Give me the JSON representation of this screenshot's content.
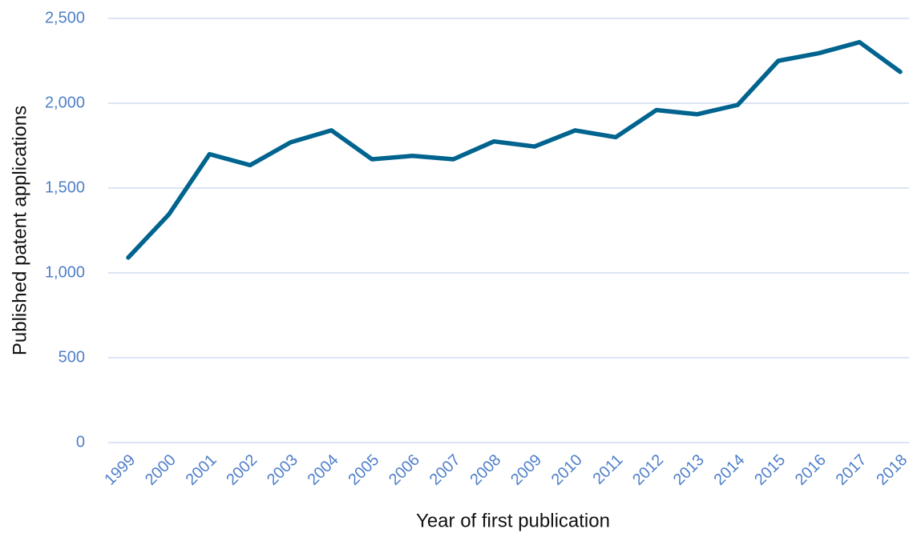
{
  "chart_data": {
    "type": "line",
    "x_label": "Year of first publication",
    "y_label": "Published patent applications",
    "categories": [
      "1999",
      "2000",
      "2001",
      "2002",
      "2003",
      "2004",
      "2005",
      "2006",
      "2007",
      "2008",
      "2009",
      "2010",
      "2011",
      "2012",
      "2013",
      "2014",
      "2015",
      "2016",
      "2017",
      "2018"
    ],
    "series": [
      {
        "name": "Published patent applications",
        "color": "#00648f",
        "values": [
          1090,
          1345,
          1700,
          1635,
          1770,
          1840,
          1670,
          1690,
          1670,
          1775,
          1745,
          1840,
          1800,
          1960,
          1935,
          1990,
          2250,
          2295,
          2360,
          2185
        ]
      }
    ],
    "ylim": [
      0,
      2500
    ],
    "yticks": [
      0,
      500,
      {
        "value": 1000,
        "label": "1,000"
      },
      {
        "value": 1500,
        "label": "1,500"
      },
      {
        "value": 2000,
        "label": "2,000"
      },
      {
        "value": 2500,
        "label": "2,500"
      }
    ],
    "grid": true
  }
}
